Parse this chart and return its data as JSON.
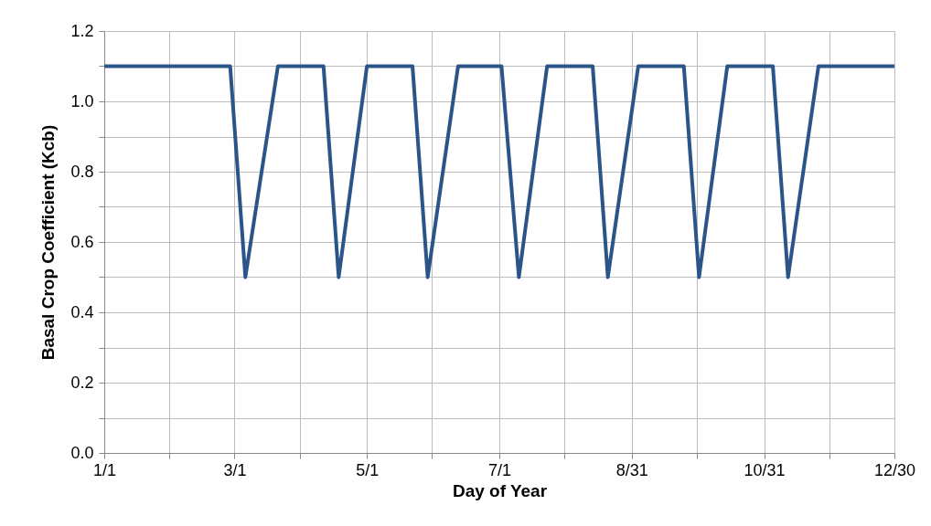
{
  "chart_data": {
    "type": "line",
    "xlabel": "Day of Year",
    "ylabel": "Basal Crop Coefficient (Kcb)",
    "x": [
      "--01-01",
      "--02-28",
      "--03-06",
      "--03-21",
      "--04-11",
      "--04-18",
      "--05-01",
      "--05-22",
      "--05-29",
      "--06-12",
      "--07-02",
      "--07-10",
      "--07-23",
      "--08-13",
      "--08-20",
      "--09-03",
      "--09-24",
      "--10-01",
      "--10-14",
      "--11-04",
      "--11-11",
      "--11-25",
      "--12-30"
    ],
    "series": [
      {
        "color": "#2b5589",
        "values": [
          1.1,
          1.1,
          0.5,
          1.1,
          1.1,
          0.5,
          1.1,
          1.1,
          0.5,
          1.1,
          1.1,
          0.5,
          1.1,
          1.1,
          0.5,
          1.1,
          1.1,
          0.5,
          1.1,
          1.1,
          0.5,
          1.1,
          1.1
        ]
      }
    ],
    "xlim": [
      "--01-01",
      "--12-30"
    ],
    "xticks": [
      {
        "value": "--01-01",
        "label": "1/1"
      },
      {
        "value": "--01-31",
        "label": null
      },
      {
        "value": "--03-01",
        "label": "3/1"
      },
      {
        "value": "--03-31",
        "label": null
      },
      {
        "value": "--05-01",
        "label": "5/1"
      },
      {
        "value": "--05-31",
        "label": null
      },
      {
        "value": "--07-01",
        "label": "7/1"
      },
      {
        "value": "--07-31",
        "label": null
      },
      {
        "value": "--08-31",
        "label": "8/31"
      },
      {
        "value": "--09-30",
        "label": null
      },
      {
        "value": "--10-31",
        "label": "10/31"
      },
      {
        "value": "--11-30",
        "label": null
      },
      {
        "value": "--12-30",
        "label": "12/30"
      }
    ],
    "ylim": [
      0,
      1.2
    ],
    "yticks": [
      {
        "value": 0,
        "label": "0.0"
      },
      {
        "value": 0.1,
        "label": null
      },
      {
        "value": 0.2,
        "label": "0.2"
      },
      {
        "value": 0.3,
        "label": null
      },
      {
        "value": 0.4,
        "label": "0.4"
      },
      {
        "value": 0.5,
        "label": null
      },
      {
        "value": 0.6,
        "label": "0.6"
      },
      {
        "value": 0.7,
        "label": null
      },
      {
        "value": 0.8,
        "label": "0.8"
      },
      {
        "value": 0.9,
        "label": null
      },
      {
        "value": 1.0,
        "label": "1.0"
      },
      {
        "value": 1.1,
        "label": null
      },
      {
        "value": 1.2,
        "label": "1.2"
      }
    ],
    "grid": true,
    "marker": "none",
    "line_style": "solid"
  }
}
